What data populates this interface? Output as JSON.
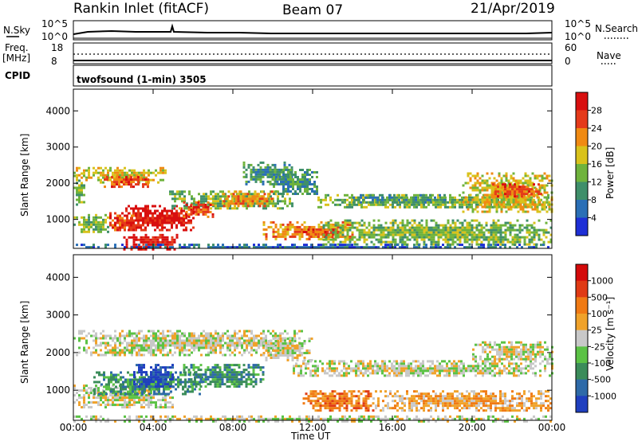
{
  "header": {
    "station": "Rankin Inlet (fitACF)",
    "beam": "Beam 07",
    "date": "21/Apr/2019"
  },
  "top_panels": {
    "nsky_label": "N.Sky",
    "nsky_ticks": [
      "10^5",
      "10^0"
    ],
    "nsearch_label": "N.Search",
    "nsearch_ticks": [
      "10^5",
      "10^0"
    ],
    "freq_label_1": "Freq.",
    "freq_label_2": "[MHz]",
    "freq_ticks": [
      "18",
      "8"
    ],
    "nave_label": "Nave",
    "nave_ticks": [
      "60",
      "0"
    ],
    "cpid_label": "CPID",
    "cpid_text": "twofsound (1-min) 3505"
  },
  "chart_data": [
    {
      "type": "heatmap",
      "name": "power",
      "ylabel": "Slant Range [km]",
      "xlabel": "",
      "yticks": [
        "1000",
        "2000",
        "3000",
        "4000"
      ],
      "ylim": [
        200,
        4600
      ],
      "xticks": [
        "00:00",
        "04:00",
        "08:00",
        "12:00",
        "16:00",
        "20:00",
        "00:00"
      ],
      "xlim_hours": [
        0,
        24
      ],
      "colorbar": {
        "label": "Power [dB]",
        "ticks": [
          "4",
          "8",
          "12",
          "16",
          "20",
          "24",
          "28"
        ],
        "colors": [
          "#1e2fd6",
          "#2a6fb6",
          "#3f8f6a",
          "#6fb33c",
          "#d9c21b",
          "#f08a12",
          "#e53a1a",
          "#d80f0f"
        ]
      },
      "regions": [
        {
          "t0": 0.0,
          "t1": 4.6,
          "r0": 2050,
          "r1": 2450,
          "level": 4
        },
        {
          "t0": 1.4,
          "t1": 3.8,
          "r0": 1900,
          "r1": 2200,
          "level": 6
        },
        {
          "t0": 0.0,
          "t1": 0.6,
          "r0": 1400,
          "r1": 2300,
          "level": 3
        },
        {
          "t0": 0.0,
          "t1": 1.8,
          "r0": 650,
          "r1": 1150,
          "level": 3
        },
        {
          "t0": 1.8,
          "t1": 3.5,
          "r0": 700,
          "r1": 1200,
          "level": 6
        },
        {
          "t0": 2.6,
          "t1": 6.0,
          "r0": 700,
          "r1": 1400,
          "level": 7
        },
        {
          "t0": 2.5,
          "t1": 5.2,
          "r0": 200,
          "r1": 600,
          "level": 7
        },
        {
          "t0": 4.8,
          "t1": 11.0,
          "r0": 1300,
          "r1": 1800,
          "level": 3
        },
        {
          "t0": 5.5,
          "t1": 7.0,
          "r0": 1100,
          "r1": 1500,
          "level": 6
        },
        {
          "t0": 7.5,
          "t1": 10.0,
          "r0": 1400,
          "r1": 1800,
          "level": 5
        },
        {
          "t0": 8.5,
          "t1": 11.0,
          "r0": 2000,
          "r1": 2600,
          "level": 2
        },
        {
          "t0": 10.0,
          "t1": 12.2,
          "r0": 1700,
          "r1": 2400,
          "level": 2
        },
        {
          "t0": 9.5,
          "t1": 14.0,
          "r0": 450,
          "r1": 950,
          "level": 5
        },
        {
          "t0": 11.5,
          "t1": 13.5,
          "r0": 500,
          "r1": 750,
          "level": 6
        },
        {
          "t0": 12.0,
          "t1": 24.0,
          "r0": 1350,
          "r1": 1700,
          "level": 3
        },
        {
          "t0": 14.0,
          "t1": 19.0,
          "r0": 1500,
          "r1": 1700,
          "level": 2
        },
        {
          "t0": 19.5,
          "t1": 24.0,
          "r0": 1200,
          "r1": 2300,
          "level": 4
        },
        {
          "t0": 21.0,
          "t1": 23.5,
          "r0": 1650,
          "r1": 2000,
          "level": 6
        },
        {
          "t0": 12.5,
          "t1": 24.0,
          "r0": 300,
          "r1": 1000,
          "level": 3
        },
        {
          "t0": 0.0,
          "t1": 24.0,
          "r0": 200,
          "r1": 330,
          "level": 1
        }
      ]
    },
    {
      "type": "heatmap",
      "name": "velocity",
      "ylabel": "Slant Range [km]",
      "xlabel": "Time UT",
      "yticks": [
        "1000",
        "2000",
        "3000",
        "4000"
      ],
      "ylim": [
        200,
        4600
      ],
      "xticks": [
        "00:00",
        "04:00",
        "08:00",
        "12:00",
        "16:00",
        "20:00",
        "00:00"
      ],
      "xlim_hours": [
        0,
        24
      ],
      "colorbar": {
        "label": "Velocity [m s⁻¹]",
        "ticks": [
          "1000",
          "500",
          "100",
          "25",
          "-25",
          "-100",
          "-500",
          "-1000"
        ],
        "colors": [
          "#1f3fbf",
          "#2e6aa8",
          "#3b8c5a",
          "#5bc245",
          "#c8c8c8",
          "#f0a22a",
          "#f07a14",
          "#e03a14",
          "#d40a0a"
        ]
      },
      "regions": [
        {
          "t0": 0.0,
          "t1": 11.5,
          "r0": 1950,
          "r1": 2600,
          "level": 4
        },
        {
          "t0": 0.0,
          "t1": 5.0,
          "r0": 550,
          "r1": 1150,
          "level": 4
        },
        {
          "t0": 1.0,
          "t1": 6.5,
          "r0": 900,
          "r1": 1500,
          "level": 2
        },
        {
          "t0": 3.0,
          "t1": 5.0,
          "r0": 1100,
          "r1": 1700,
          "level": 0
        },
        {
          "t0": 5.5,
          "t1": 9.5,
          "r0": 1100,
          "r1": 1700,
          "level": 2
        },
        {
          "t0": 9.5,
          "t1": 12.0,
          "r0": 1800,
          "r1": 2400,
          "level": 4
        },
        {
          "t0": 11.0,
          "t1": 24.0,
          "r0": 1400,
          "r1": 1800,
          "level": 4
        },
        {
          "t0": 11.5,
          "t1": 15.0,
          "r0": 450,
          "r1": 1000,
          "level": 6
        },
        {
          "t0": 15.0,
          "t1": 24.0,
          "r0": 450,
          "r1": 1000,
          "level": 5
        },
        {
          "t0": 20.0,
          "t1": 24.0,
          "r0": 1800,
          "r1": 2300,
          "level": 4
        },
        {
          "t0": 0.0,
          "t1": 24.0,
          "r0": 200,
          "r1": 330,
          "level": 4
        }
      ]
    }
  ]
}
